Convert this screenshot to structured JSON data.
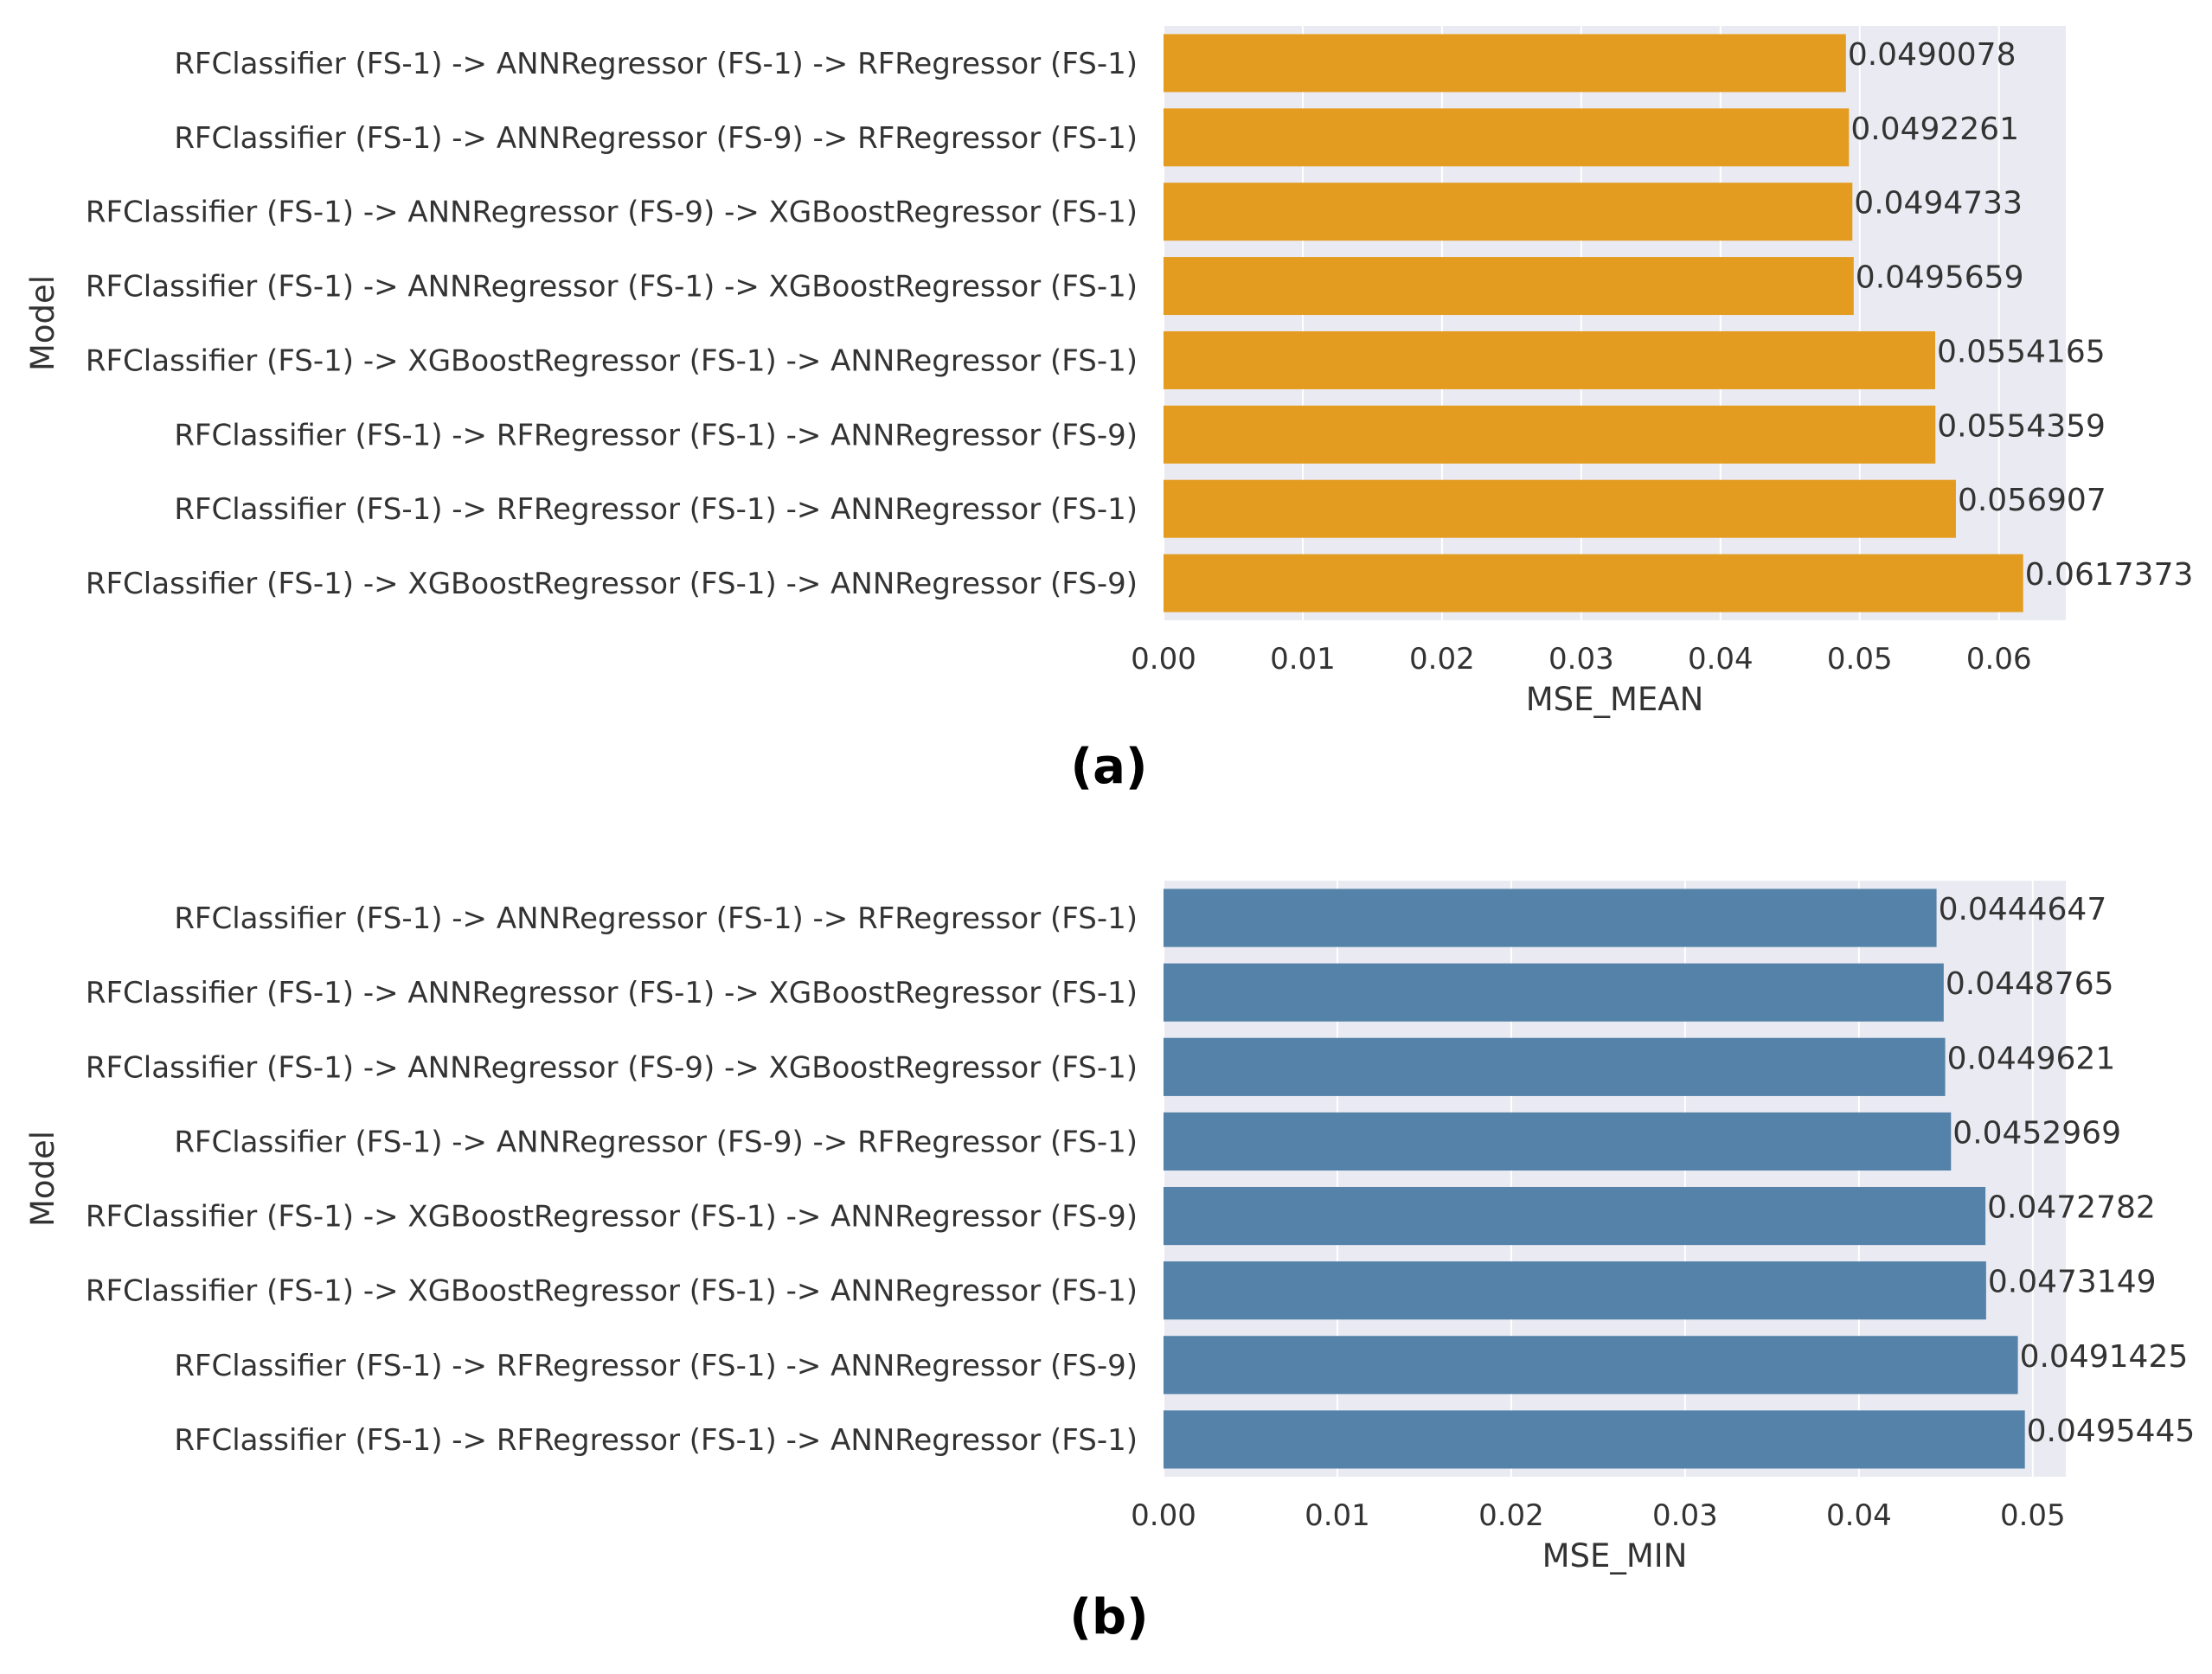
{
  "chart_data": [
    {
      "type": "bar",
      "orientation": "horizontal",
      "panel_label": "(a)",
      "xlabel": "MSE_MEAN",
      "ylabel": "Model",
      "xlim": [
        0,
        0.0648
      ],
      "xticks": [
        0.0,
        0.01,
        0.02,
        0.03,
        0.04,
        0.05,
        0.06
      ],
      "xtick_labels": [
        "0.00",
        "0.01",
        "0.02",
        "0.03",
        "0.04",
        "0.05",
        "0.06"
      ],
      "grid": true,
      "color": "#e39c20",
      "categories": [
        "RFClassifier (FS-1) -> ANNRegressor (FS-1) -> RFRegressor (FS-1)",
        "RFClassifier (FS-1) -> ANNRegressor (FS-9) -> RFRegressor (FS-1)",
        "RFClassifier (FS-1) -> ANNRegressor (FS-9) -> XGBoostRegressor (FS-1)",
        "RFClassifier (FS-1) -> ANNRegressor (FS-1) -> XGBoostRegressor (FS-1)",
        "RFClassifier (FS-1) -> XGBoostRegressor (FS-1) -> ANNRegressor (FS-1)",
        "RFClassifier (FS-1) -> RFRegressor (FS-1) -> ANNRegressor (FS-9)",
        "RFClassifier (FS-1) -> RFRegressor (FS-1) -> ANNRegressor (FS-1)",
        "RFClassifier (FS-1) -> XGBoostRegressor (FS-1) -> ANNRegressor (FS-9)"
      ],
      "values": [
        0.0490078,
        0.0492261,
        0.0494733,
        0.0495659,
        0.0554165,
        0.0554359,
        0.056907,
        0.0617373
      ],
      "value_labels": [
        "0.0490078",
        "0.0492261",
        "0.0494733",
        "0.0495659",
        "0.0554165",
        "0.0554359",
        "0.056907",
        "0.0617373"
      ]
    },
    {
      "type": "bar",
      "orientation": "horizontal",
      "panel_label": "(b)",
      "xlabel": "MSE_MIN",
      "ylabel": "Model",
      "xlim": [
        0,
        0.0519
      ],
      "xticks": [
        0.0,
        0.01,
        0.02,
        0.03,
        0.04,
        0.05
      ],
      "xtick_labels": [
        "0.00",
        "0.01",
        "0.02",
        "0.03",
        "0.04",
        "0.05"
      ],
      "grid": true,
      "color": "#5482a8",
      "categories": [
        "RFClassifier (FS-1) -> ANNRegressor (FS-1) -> RFRegressor (FS-1)",
        "RFClassifier (FS-1) -> ANNRegressor (FS-1) -> XGBoostRegressor (FS-1)",
        "RFClassifier (FS-1) -> ANNRegressor (FS-9) -> XGBoostRegressor (FS-1)",
        "RFClassifier (FS-1) -> ANNRegressor (FS-9) -> RFRegressor (FS-1)",
        "RFClassifier (FS-1) -> XGBoostRegressor (FS-1) -> ANNRegressor (FS-9)",
        "RFClassifier (FS-1) -> XGBoostRegressor (FS-1) -> ANNRegressor (FS-1)",
        "RFClassifier (FS-1) -> RFRegressor (FS-1) -> ANNRegressor (FS-9)",
        "RFClassifier (FS-1) -> RFRegressor (FS-1) -> ANNRegressor (FS-1)"
      ],
      "values": [
        0.0444647,
        0.0448765,
        0.0449621,
        0.0452969,
        0.0472782,
        0.0473149,
        0.0491425,
        0.0495445
      ],
      "value_labels": [
        "0.0444647",
        "0.0448765",
        "0.0449621",
        "0.0452969",
        "0.0472782",
        "0.0473149",
        "0.0491425",
        "0.0495445"
      ]
    }
  ]
}
